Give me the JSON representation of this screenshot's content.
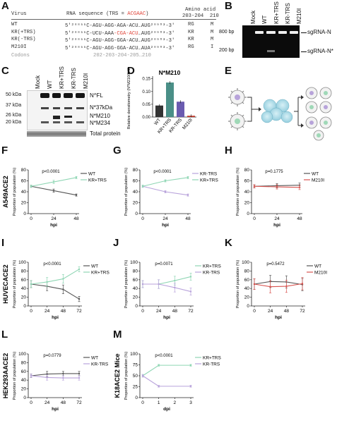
{
  "panels": {
    "A": {
      "letter": "A",
      "header_virus": "Virus",
      "header_rna_prefix": "RNA sequence (TRS = ",
      "header_rna_trs": "ACGAAC",
      "header_rna_suffix": ")",
      "header_aa": "Amino acid",
      "header_aa_pos": "203-204  210",
      "rows": [
        {
          "name": "WT",
          "seq_a": "5'²⁸⁸⁵⁵C-AGU-AGG-AGA-ACU",
          "seq_trs": "",
          "seq_b": "…AUG²⁸⁹⁰³-3'",
          "aa1": "RG",
          "aa2": "M"
        },
        {
          "name": "KR(+TRS)",
          "seq_a": "5'²⁸⁸⁵⁵C-UCU-AAA",
          "seq_trs": "-CGA-ACU",
          "seq_b": "…AUG²⁸⁹⁰³-3'",
          "aa1": "KR",
          "aa2": "M"
        },
        {
          "name": "KR(-TRS)",
          "seq_a": "5'²⁸⁸⁵⁵C-AGU-AGG-GGA-ACU",
          "seq_trs": "",
          "seq_b": "…AUG²⁸⁹⁰³-3'",
          "aa1": "KR",
          "aa2": "M"
        },
        {
          "name": "M210I",
          "seq_a": "5'²⁸⁸⁵⁵C-AGU-AGG-GGA-ACU",
          "seq_trs": "",
          "seq_b": "…AUA²⁸⁹⁰³-3'",
          "aa1": "RG",
          "aa2": "I"
        }
      ],
      "codons_label": "Codons",
      "codons_positions": "202-203-204-205…210"
    },
    "B": {
      "letter": "B",
      "lanes": [
        "Mock",
        "WT",
        "KR+TRS",
        "KR-TRS",
        "M210I"
      ],
      "ladder": [
        "800 bp",
        "200 bp"
      ],
      "bands": [
        "sgRNA-N",
        "sgRNA-N*"
      ]
    },
    "C": {
      "letter": "C",
      "lanes": [
        "Mock",
        "WT",
        "KR+TRS",
        "KR-TRS",
        "M210I"
      ],
      "markers": [
        "50 kDa",
        "37 kDa",
        "26 kDa",
        "20 kDa"
      ],
      "bands": [
        "N^FL",
        "N*37kDa",
        "N*M210",
        "N*M234"
      ],
      "total_protein": "Total protein"
    },
    "D": {
      "letter": "D",
      "title": "N*M210",
      "ylabel": "Relative densitometry (N*M210/N^FL)"
    },
    "E": {
      "letter": "E"
    },
    "F": {
      "letter": "F",
      "row_label": "A549ACE2",
      "pval": "p<0.0001"
    },
    "G": {
      "letter": "G",
      "pval": "p<0.0001"
    },
    "H": {
      "letter": "H",
      "pval": "p=0.1775"
    },
    "I": {
      "letter": "I",
      "row_label": "HUVECACE2",
      "pval": "p<0.0001"
    },
    "J": {
      "letter": "J",
      "pval": "p=0.0071"
    },
    "K": {
      "letter": "K",
      "pval": "p=0.5472"
    },
    "L": {
      "letter": "L",
      "row_label": "HEK293AACE2",
      "pval": "p=0.0779"
    },
    "M": {
      "letter": "M",
      "row_label": "K18ACE2 Mice",
      "pval": "p<0.0001"
    }
  },
  "colors": {
    "wt": "#555555",
    "kr_plus": "#8fd6b4",
    "kr_minus": "#b8a2db",
    "m210i": "#d9534f",
    "bar_wt": "#333333",
    "bar_krplus": "#4a8f87",
    "bar_krminus": "#6a5bb0",
    "bar_m210i": "#c0392b",
    "trs_red": "#e0453a"
  },
  "chart_data": [
    {
      "id": "D",
      "type": "bar",
      "categories": [
        "WT",
        "KR+TRS",
        "KR-TRS",
        "M210I"
      ],
      "values": [
        0.045,
        0.135,
        0.06,
        0.005
      ],
      "ylabel": "Relative densitometry (N*M210/N^FL)",
      "yticks": [
        0.0,
        0.05,
        0.1,
        0.15
      ],
      "ylim": [
        0,
        0.16
      ]
    },
    {
      "id": "F",
      "type": "line",
      "x": [
        0,
        24,
        48
      ],
      "xticks": [
        0,
        24,
        48
      ],
      "xlabel": "hpi",
      "ylabel": "Proportion of population (%)",
      "yticks": [
        0,
        20,
        40,
        60,
        80
      ],
      "ylim": [
        0,
        80
      ],
      "series": [
        {
          "name": "WT",
          "color_key": "wt",
          "values": [
            50,
            42,
            34
          ],
          "err": [
            2,
            3,
            2
          ]
        },
        {
          "name": "KR+TRS",
          "color_key": "kr_plus",
          "values": [
            50,
            58,
            66
          ],
          "err": [
            2,
            3,
            2
          ]
        }
      ]
    },
    {
      "id": "G",
      "type": "line",
      "x": [
        0,
        24,
        48
      ],
      "xticks": [
        0,
        24,
        48
      ],
      "xlabel": "hpi",
      "ylabel": "Proportion of population (%)",
      "yticks": [
        0,
        20,
        40,
        60,
        80
      ],
      "ylim": [
        0,
        80
      ],
      "series": [
        {
          "name": "KR-TRS",
          "color_key": "kr_minus",
          "values": [
            50,
            40,
            34
          ],
          "err": [
            2,
            2,
            2
          ]
        },
        {
          "name": "KR+TRS",
          "color_key": "kr_plus",
          "values": [
            50,
            60,
            66
          ],
          "err": [
            2,
            2,
            2
          ]
        }
      ]
    },
    {
      "id": "H",
      "type": "line",
      "x": [
        0,
        24,
        48
      ],
      "xticks": [
        0,
        24,
        48
      ],
      "xlabel": "hpi",
      "ylabel": "Proportion of population (%)",
      "yticks": [
        0,
        20,
        40,
        60,
        80
      ],
      "ylim": [
        0,
        80
      ],
      "series": [
        {
          "name": "WT",
          "color_key": "wt",
          "values": [
            50,
            51,
            52
          ],
          "err": [
            3,
            4,
            4
          ]
        },
        {
          "name": "M210I",
          "color_key": "m210i",
          "values": [
            50,
            49,
            48
          ],
          "err": [
            3,
            4,
            4
          ]
        }
      ]
    },
    {
      "id": "I",
      "type": "line",
      "x": [
        0,
        24,
        48,
        72
      ],
      "xticks": [
        0,
        24,
        48,
        72
      ],
      "xlabel": "hpi",
      "ylabel": "Proportion of population (%)",
      "yticks": [
        0,
        20,
        40,
        60,
        80,
        100
      ],
      "ylim": [
        0,
        100
      ],
      "series": [
        {
          "name": "WT",
          "color_key": "wt",
          "values": [
            50,
            45,
            38,
            16
          ],
          "err": [
            8,
            10,
            10,
            6
          ]
        },
        {
          "name": "KR+TRS",
          "color_key": "kr_plus",
          "values": [
            50,
            55,
            62,
            84
          ],
          "err": [
            8,
            10,
            10,
            6
          ]
        }
      ]
    },
    {
      "id": "J",
      "type": "line",
      "x": [
        0,
        24,
        48,
        72
      ],
      "xticks": [
        0,
        24,
        48,
        72
      ],
      "xlabel": "hpi",
      "ylabel": "Proportion of population (%)",
      "yticks": [
        0,
        20,
        40,
        60,
        80,
        100
      ],
      "ylim": [
        0,
        100
      ],
      "series": [
        {
          "name": "KR+TRS",
          "color_key": "kr_plus",
          "values": [
            50,
            50,
            58,
            67
          ],
          "err": [
            8,
            10,
            10,
            8
          ]
        },
        {
          "name": "KR-TRS",
          "color_key": "kr_minus",
          "values": [
            50,
            50,
            42,
            33
          ],
          "err": [
            8,
            10,
            10,
            8
          ]
        }
      ]
    },
    {
      "id": "K",
      "type": "line",
      "x": [
        0,
        24,
        48,
        72
      ],
      "xticks": [
        0,
        24,
        48,
        72
      ],
      "xlabel": "hpi",
      "ylabel": "Proportion of population (%)",
      "yticks": [
        0,
        20,
        40,
        60,
        80,
        100
      ],
      "ylim": [
        0,
        100
      ],
      "series": [
        {
          "name": "WT",
          "color_key": "wt",
          "values": [
            50,
            56,
            55,
            49
          ],
          "err": [
            12,
            14,
            14,
            14
          ]
        },
        {
          "name": "M210I",
          "color_key": "m210i",
          "values": [
            50,
            44,
            45,
            51
          ],
          "err": [
            12,
            14,
            14,
            14
          ]
        }
      ]
    },
    {
      "id": "L",
      "type": "line",
      "x": [
        0,
        24,
        48,
        72
      ],
      "xticks": [
        0,
        24,
        48,
        72
      ],
      "xlabel": "hpi",
      "ylabel": "Proportion of population (%)",
      "yticks": [
        0,
        20,
        40,
        60,
        80,
        100
      ],
      "ylim": [
        0,
        100
      ],
      "series": [
        {
          "name": "WT",
          "color_key": "wt",
          "values": [
            50,
            54,
            55,
            55
          ],
          "err": [
            4,
            6,
            5,
            5
          ]
        },
        {
          "name": "KR-TRS",
          "color_key": "kr_minus",
          "values": [
            50,
            46,
            45,
            45
          ],
          "err": [
            4,
            6,
            5,
            5
          ]
        }
      ]
    },
    {
      "id": "M",
      "type": "line",
      "x": [
        0,
        1,
        3
      ],
      "xticks": [
        0,
        1,
        2,
        3
      ],
      "xlabel": "dpi",
      "ylabel": "Proportion of population (%)",
      "yticks": [
        0,
        25,
        50,
        75,
        100
      ],
      "ylim": [
        0,
        100
      ],
      "series": [
        {
          "name": "KR+TRS",
          "color_key": "kr_plus",
          "values": [
            50,
            74,
            74
          ],
          "err": [
            3,
            2,
            2
          ]
        },
        {
          "name": "KR-TRS",
          "color_key": "kr_minus",
          "values": [
            50,
            26,
            26
          ],
          "err": [
            3,
            2,
            2
          ]
        }
      ]
    }
  ]
}
